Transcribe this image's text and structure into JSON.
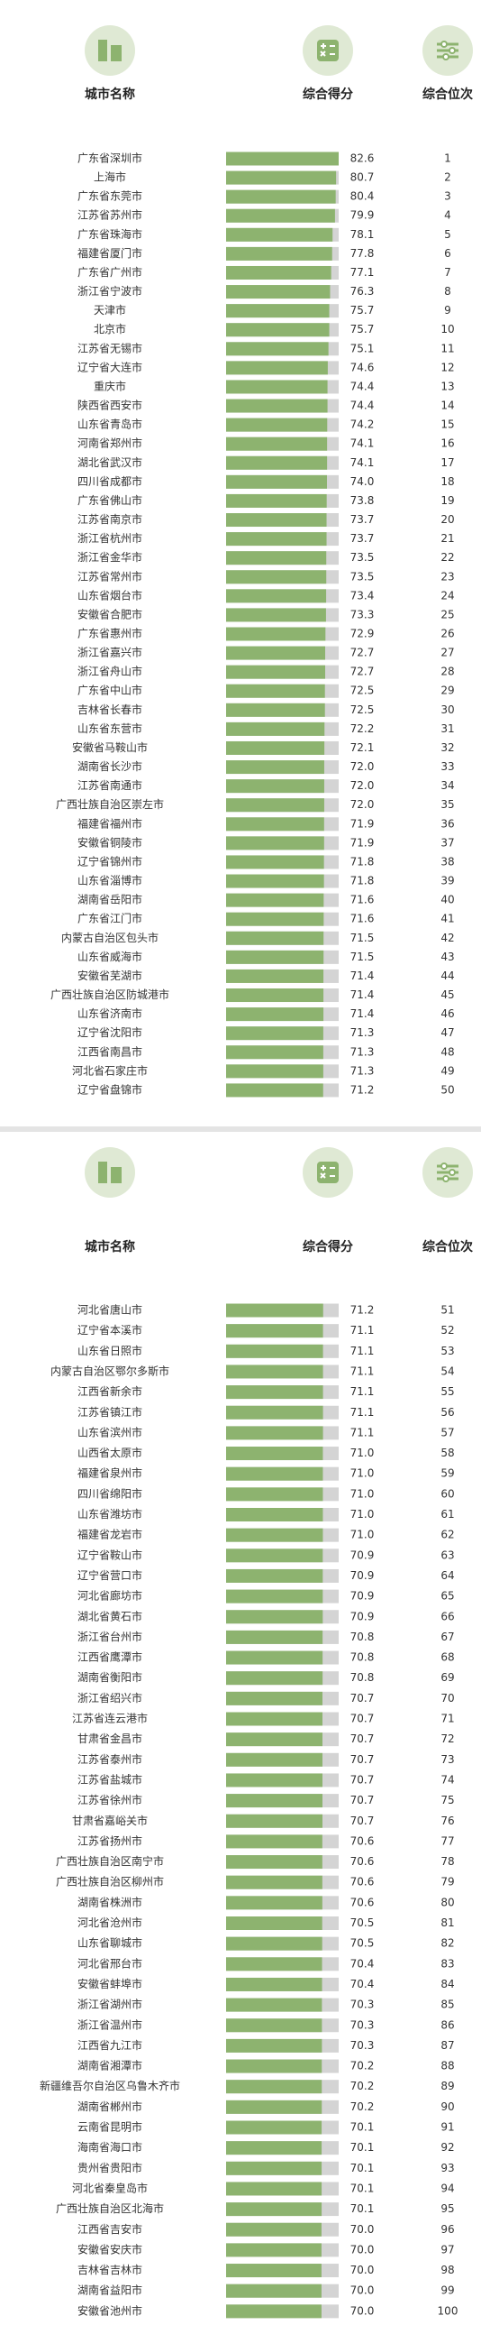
{
  "sections": [
    {
      "headers": [
        "城市名称",
        "综合得分",
        "综合位次"
      ],
      "rows": [
        [
          "广东省深圳市",
          "82.6",
          1
        ],
        [
          "上海市",
          "80.7",
          2
        ],
        [
          "广东省东莞市",
          "80.4",
          3
        ],
        [
          "江苏省苏州市",
          "79.9",
          4
        ],
        [
          "广东省珠海市",
          "78.1",
          5
        ],
        [
          "福建省厦门市",
          "77.8",
          6
        ],
        [
          "广东省广州市",
          "77.1",
          7
        ],
        [
          "浙江省宁波市",
          "76.3",
          8
        ],
        [
          "天津市",
          "75.7",
          9
        ],
        [
          "北京市",
          "75.7",
          10
        ],
        [
          "江苏省无锡市",
          "75.1",
          11
        ],
        [
          "辽宁省大连市",
          "74.6",
          12
        ],
        [
          "重庆市",
          "74.4",
          13
        ],
        [
          "陕西省西安市",
          "74.4",
          14
        ],
        [
          "山东省青岛市",
          "74.2",
          15
        ],
        [
          "河南省郑州市",
          "74.1",
          16
        ],
        [
          "湖北省武汉市",
          "74.1",
          17
        ],
        [
          "四川省成都市",
          "74.0",
          18
        ],
        [
          "广东省佛山市",
          "73.8",
          19
        ],
        [
          "江苏省南京市",
          "73.7",
          20
        ],
        [
          "浙江省杭州市",
          "73.7",
          21
        ],
        [
          "浙江省金华市",
          "73.5",
          22
        ],
        [
          "江苏省常州市",
          "73.5",
          23
        ],
        [
          "山东省烟台市",
          "73.4",
          24
        ],
        [
          "安徽省合肥市",
          "73.3",
          25
        ],
        [
          "广东省惠州市",
          "72.9",
          26
        ],
        [
          "浙江省嘉兴市",
          "72.7",
          27
        ],
        [
          "浙江省舟山市",
          "72.7",
          28
        ],
        [
          "广东省中山市",
          "72.5",
          29
        ],
        [
          "吉林省长春市",
          "72.5",
          30
        ],
        [
          "山东省东营市",
          "72.2",
          31
        ],
        [
          "安徽省马鞍山市",
          "72.1",
          32
        ],
        [
          "湖南省长沙市",
          "72.0",
          33
        ],
        [
          "江苏省南通市",
          "72.0",
          34
        ],
        [
          "广西壮族自治区崇左市",
          "72.0",
          35
        ],
        [
          "福建省福州市",
          "71.9",
          36
        ],
        [
          "安徽省铜陵市",
          "71.9",
          37
        ],
        [
          "辽宁省锦州市",
          "71.8",
          38
        ],
        [
          "山东省淄博市",
          "71.8",
          39
        ],
        [
          "湖南省岳阳市",
          "71.6",
          40
        ],
        [
          "广东省江门市",
          "71.6",
          41
        ],
        [
          "内蒙古自治区包头市",
          "71.5",
          42
        ],
        [
          "山东省威海市",
          "71.5",
          43
        ],
        [
          "安徽省芜湖市",
          "71.4",
          44
        ],
        [
          "广西壮族自治区防城港市",
          "71.4",
          45
        ],
        [
          "山东省济南市",
          "71.4",
          46
        ],
        [
          "辽宁省沈阳市",
          "71.3",
          47
        ],
        [
          "江西省南昌市",
          "71.3",
          48
        ],
        [
          "河北省石家庄市",
          "71.3",
          49
        ],
        [
          "辽宁省盘锦市",
          "71.2",
          50
        ]
      ]
    },
    {
      "headers": [
        "城市名称",
        "综合得分",
        "综合位次"
      ],
      "rows": [
        [
          "河北省唐山市",
          "71.2",
          51
        ],
        [
          "辽宁省本溪市",
          "71.1",
          52
        ],
        [
          "山东省日照市",
          "71.1",
          53
        ],
        [
          "内蒙古自治区鄂尔多斯市",
          "71.1",
          54
        ],
        [
          "江西省新余市",
          "71.1",
          55
        ],
        [
          "江苏省镇江市",
          "71.1",
          56
        ],
        [
          "山东省滨州市",
          "71.1",
          57
        ],
        [
          "山西省太原市",
          "71.0",
          58
        ],
        [
          "福建省泉州市",
          "71.0",
          59
        ],
        [
          "四川省绵阳市",
          "71.0",
          60
        ],
        [
          "山东省潍坊市",
          "71.0",
          61
        ],
        [
          "福建省龙岩市",
          "71.0",
          62
        ],
        [
          "辽宁省鞍山市",
          "70.9",
          63
        ],
        [
          "辽宁省营口市",
          "70.9",
          64
        ],
        [
          "河北省廊坊市",
          "70.9",
          65
        ],
        [
          "湖北省黄石市",
          "70.9",
          66
        ],
        [
          "浙江省台州市",
          "70.8",
          67
        ],
        [
          "江西省鹰潭市",
          "70.8",
          68
        ],
        [
          "湖南省衡阳市",
          "70.8",
          69
        ],
        [
          "浙江省绍兴市",
          "70.7",
          70
        ],
        [
          "江苏省连云港市",
          "70.7",
          71
        ],
        [
          "甘肃省金昌市",
          "70.7",
          72
        ],
        [
          "江苏省泰州市",
          "70.7",
          73
        ],
        [
          "江苏省盐城市",
          "70.7",
          74
        ],
        [
          "江苏省徐州市",
          "70.7",
          75
        ],
        [
          "甘肃省嘉峪关市",
          "70.7",
          76
        ],
        [
          "江苏省扬州市",
          "70.6",
          77
        ],
        [
          "广西壮族自治区南宁市",
          "70.6",
          78
        ],
        [
          "广西壮族自治区柳州市",
          "70.6",
          79
        ],
        [
          "湖南省株洲市",
          "70.6",
          80
        ],
        [
          "河北省沧州市",
          "70.5",
          81
        ],
        [
          "山东省聊城市",
          "70.5",
          82
        ],
        [
          "河北省邢台市",
          "70.4",
          83
        ],
        [
          "安徽省蚌埠市",
          "70.4",
          84
        ],
        [
          "浙江省湖州市",
          "70.3",
          85
        ],
        [
          "浙江省温州市",
          "70.3",
          86
        ],
        [
          "江西省九江市",
          "70.3",
          87
        ],
        [
          "湖南省湘潭市",
          "70.2",
          88
        ],
        [
          "新疆维吾尔自治区乌鲁木齐市",
          "70.2",
          89
        ],
        [
          "湖南省郴州市",
          "70.2",
          90
        ],
        [
          "云南省昆明市",
          "70.1",
          91
        ],
        [
          "海南省海口市",
          "70.1",
          92
        ],
        [
          "贵州省贵阳市",
          "70.1",
          93
        ],
        [
          "河北省秦皇岛市",
          "70.1",
          94
        ],
        [
          "广西壮族自治区北海市",
          "70.1",
          95
        ],
        [
          "江西省吉安市",
          "70.0",
          96
        ],
        [
          "安徽省安庆市",
          "70.0",
          97
        ],
        [
          "吉林省吉林市",
          "70.0",
          98
        ],
        [
          "湖南省益阳市",
          "70.0",
          99
        ],
        [
          "安徽省池州市",
          "70.0",
          100
        ]
      ]
    }
  ]
}
